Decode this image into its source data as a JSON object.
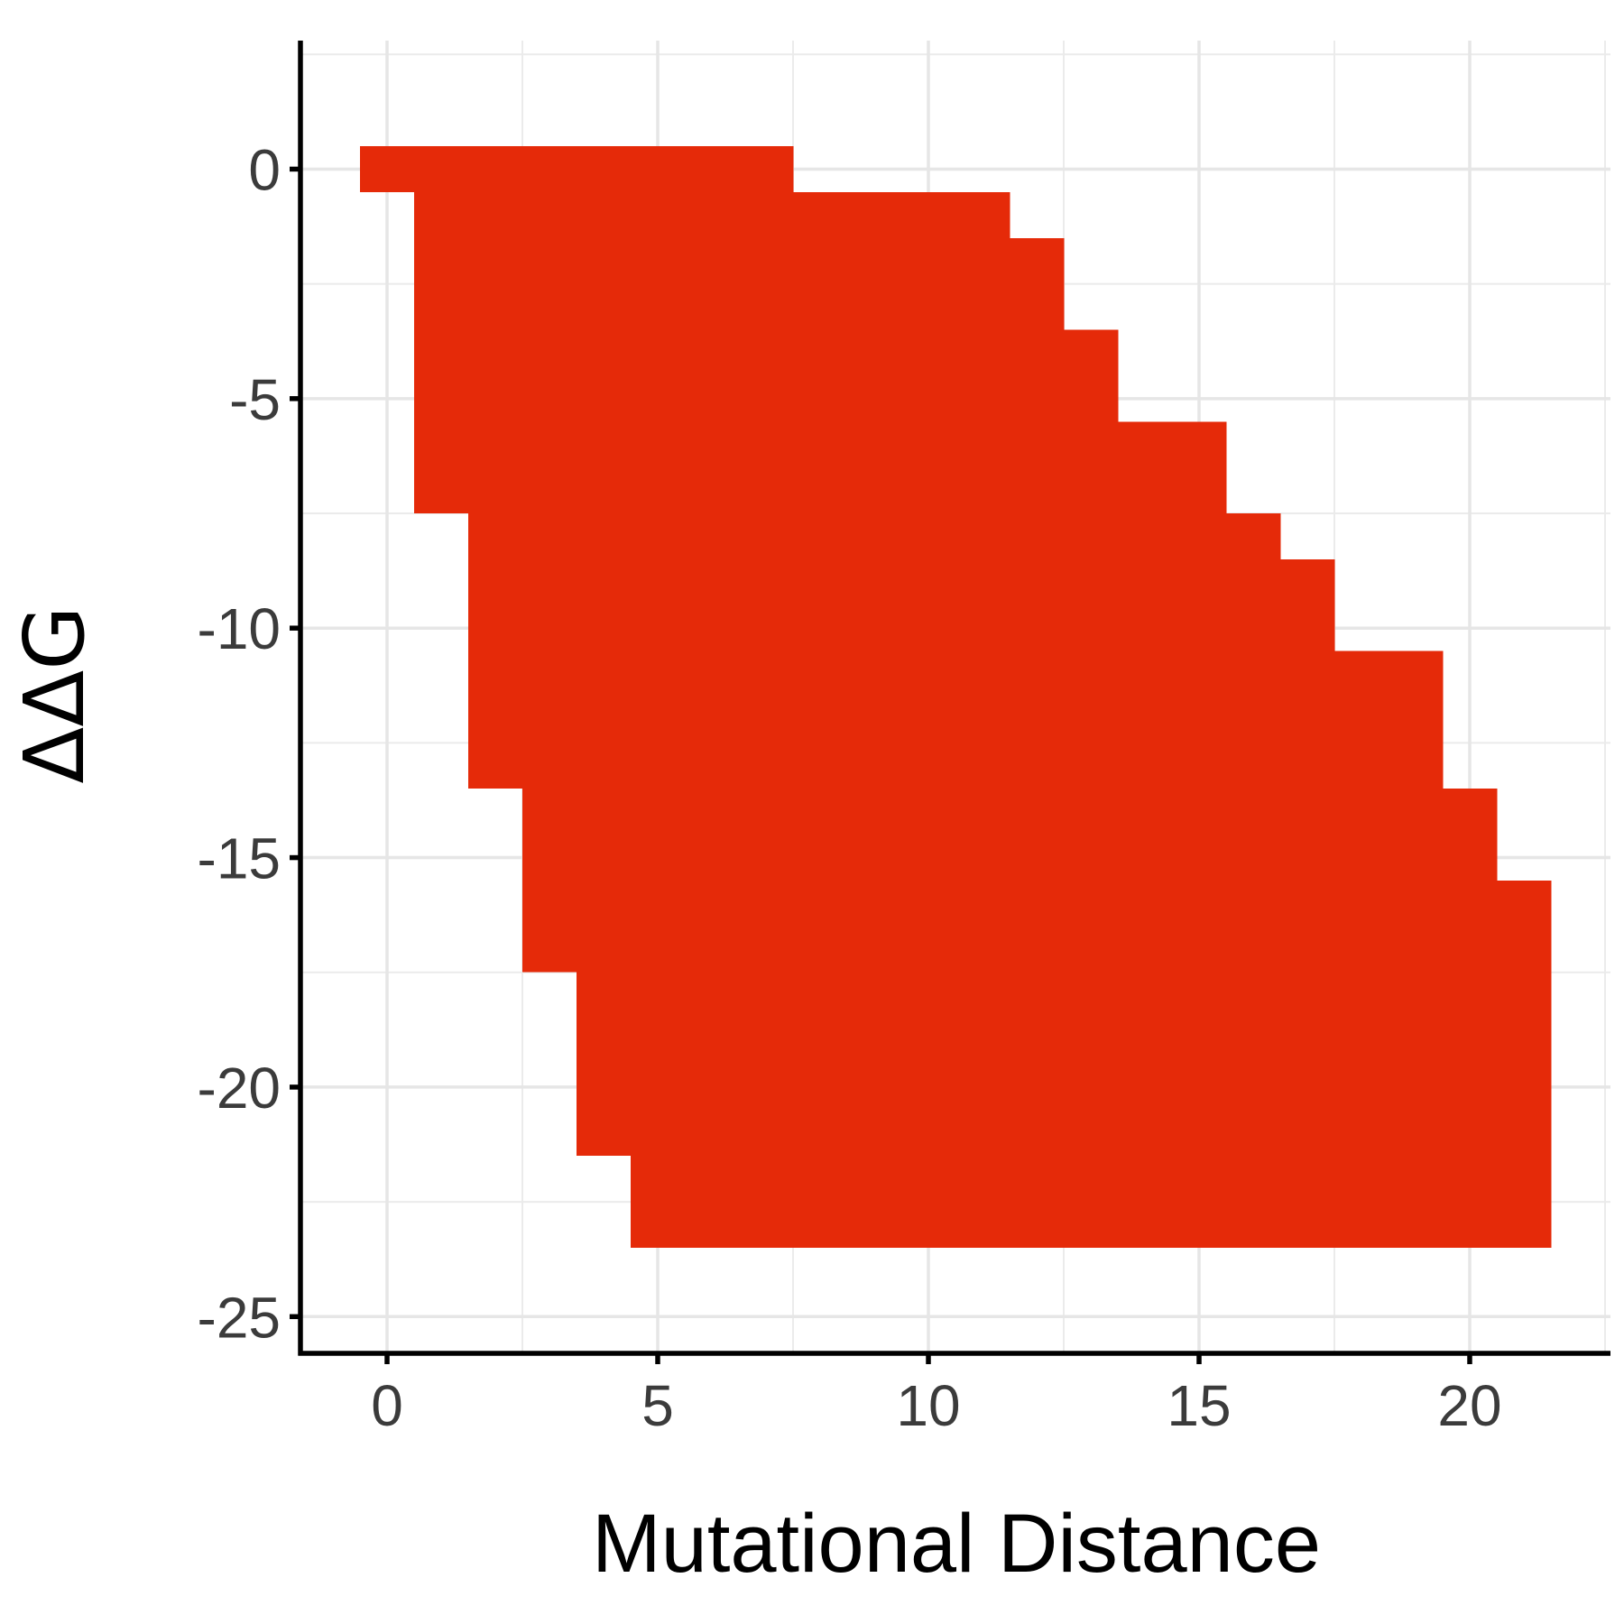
{
  "chart_data": {
    "type": "heatmap",
    "xlabel": "Mutational Distance",
    "ylabel": "ΔΔG",
    "xlim": [
      -1.6,
      22.6
    ],
    "ylim": [
      -25.8,
      2.8
    ],
    "x_ticks": [
      0,
      5,
      10,
      15,
      20
    ],
    "y_ticks": [
      0,
      -5,
      -10,
      -15,
      -20,
      -25
    ],
    "x_minor_ticks": [
      2.5,
      7.5,
      12.5,
      17.5,
      22.5
    ],
    "y_minor_ticks": [
      2.5,
      -2.5,
      -7.5,
      -12.5,
      -17.5,
      -22.5
    ],
    "grid": true,
    "legend": "none",
    "fill_color": "#E52A09",
    "cells_description": "Each filled cell is 1 unit of mutational distance by 1 unit of ΔΔG; column ranges give ΔΔG from min to max (inclusive).",
    "columns": [
      {
        "x": 0,
        "ddg_min": 0,
        "ddg_max": 0
      },
      {
        "x": 1,
        "ddg_min": -7,
        "ddg_max": 0
      },
      {
        "x": 2,
        "ddg_min": -13,
        "ddg_max": 0
      },
      {
        "x": 3,
        "ddg_min": -17,
        "ddg_max": 0
      },
      {
        "x": 4,
        "ddg_min": -21,
        "ddg_max": 0
      },
      {
        "x": 5,
        "ddg_min": -23,
        "ddg_max": 0
      },
      {
        "x": 6,
        "ddg_min": -23,
        "ddg_max": 0
      },
      {
        "x": 7,
        "ddg_min": -23,
        "ddg_max": 0
      },
      {
        "x": 8,
        "ddg_min": -23,
        "ddg_max": -1
      },
      {
        "x": 9,
        "ddg_min": -23,
        "ddg_max": -1
      },
      {
        "x": 10,
        "ddg_min": -23,
        "ddg_max": -1
      },
      {
        "x": 11,
        "ddg_min": -23,
        "ddg_max": -1
      },
      {
        "x": 12,
        "ddg_min": -23,
        "ddg_max": -2
      },
      {
        "x": 13,
        "ddg_min": -23,
        "ddg_max": -4
      },
      {
        "x": 14,
        "ddg_min": -23,
        "ddg_max": -6
      },
      {
        "x": 15,
        "ddg_min": -23,
        "ddg_max": -6
      },
      {
        "x": 16,
        "ddg_min": -23,
        "ddg_max": -8
      },
      {
        "x": 17,
        "ddg_min": -23,
        "ddg_max": -9
      },
      {
        "x": 18,
        "ddg_min": -23,
        "ddg_max": -11
      },
      {
        "x": 19,
        "ddg_min": -23,
        "ddg_max": -11
      },
      {
        "x": 20,
        "ddg_min": -23,
        "ddg_max": -14
      },
      {
        "x": 21,
        "ddg_min": -23,
        "ddg_max": -16
      }
    ]
  }
}
